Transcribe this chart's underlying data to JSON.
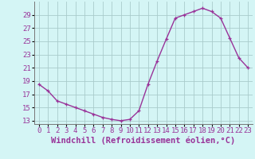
{
  "xlabel": "Windchill (Refroidissement éolien,°C)",
  "x": [
    0,
    1,
    2,
    3,
    4,
    5,
    6,
    7,
    8,
    9,
    10,
    11,
    12,
    13,
    14,
    15,
    16,
    17,
    18,
    19,
    20,
    21,
    22,
    23
  ],
  "y": [
    18.5,
    17.5,
    16.0,
    15.5,
    15.0,
    14.5,
    14.0,
    13.5,
    13.2,
    13.0,
    13.2,
    14.5,
    18.5,
    22.0,
    25.3,
    28.5,
    29.0,
    29.5,
    30.0,
    29.5,
    28.5,
    25.5,
    22.5,
    21.0
  ],
  "ylim": [
    12.5,
    31.0
  ],
  "xlim": [
    -0.5,
    23.5
  ],
  "yticks": [
    13,
    15,
    17,
    19,
    21,
    23,
    25,
    27,
    29
  ],
  "xticks": [
    0,
    1,
    2,
    3,
    4,
    5,
    6,
    7,
    8,
    9,
    10,
    11,
    12,
    13,
    14,
    15,
    16,
    17,
    18,
    19,
    20,
    21,
    22,
    23
  ],
  "line_color": "#993399",
  "marker_color": "#993399",
  "bg_color": "#d4f5f5",
  "grid_color": "#aacccc",
  "axis_label_color": "#993399",
  "tick_label_color": "#993399",
  "tick_label_fontsize": 6.5,
  "xlabel_fontsize": 7.5
}
